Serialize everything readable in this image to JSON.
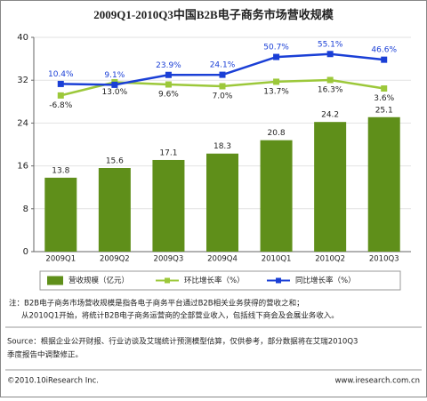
{
  "chart_data": {
    "type": "bar-line",
    "title": "2009Q1-2010Q3中国B2B电子商务市场营收规模",
    "categories": [
      "2009Q1",
      "2009Q2",
      "2009Q3",
      "2009Q4",
      "2010Q1",
      "2010Q2",
      "2010Q3"
    ],
    "series": [
      {
        "name": "营收规模（亿元）",
        "kind": "bar",
        "color": "#5f8f1a",
        "values": [
          13.8,
          15.6,
          17.1,
          18.3,
          20.8,
          24.2,
          25.1
        ]
      },
      {
        "name": "环比增长率（%）",
        "kind": "line",
        "axis": "y2",
        "color": "#9cc83a",
        "values": [
          -6.8,
          13.0,
          9.6,
          7.0,
          13.7,
          16.3,
          3.6
        ],
        "value_labels": [
          "-6.8%",
          "13.0%",
          "9.6%",
          "7.0%",
          "13.7%",
          "16.3%",
          "3.6%"
        ]
      },
      {
        "name": "同比增长率（%）",
        "kind": "line",
        "axis": "y2",
        "color": "#1a3fd6",
        "values": [
          10.4,
          9.1,
          23.9,
          24.1,
          50.7,
          55.1,
          46.6
        ],
        "value_labels": [
          "10.4%",
          "9.1%",
          "23.9%",
          "24.1%",
          "50.7%",
          "55.1%",
          "46.6%"
        ]
      }
    ],
    "ylim": [
      0,
      40
    ],
    "yticks": [
      0,
      8,
      16,
      24,
      32,
      40
    ],
    "y2lim": [
      -240,
      80
    ],
    "grid": true
  },
  "notes": [
    "注：B2B电子商务市场营收规模是指各电子商务平台通过B2B相关业务获得的营收之和；",
    "从2010Q1开始，将统计B2B电子商务运营商的全部营业收入，包括线下商会及会展业务收入。"
  ],
  "source": [
    "Source：根据企业公开财报、行业访谈及艾瑞统计预测模型估算，仅供参考，部分数据将在艾瑞2010Q3",
    "季度报告中调整修正。"
  ],
  "footer": {
    "copyright": "©2010.10iResearch Inc.",
    "website": "www.iresearch.com.cn"
  }
}
